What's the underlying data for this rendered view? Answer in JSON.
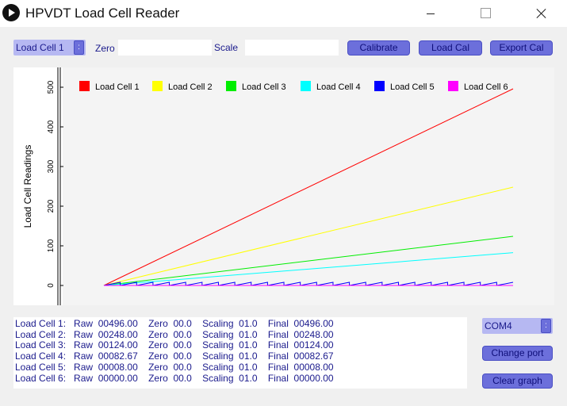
{
  "window": {
    "title": "HPVDT Load Cell Reader"
  },
  "toolbar": {
    "cell_select": "Load Cell 1",
    "zero_label": "Zero",
    "zero_value": "",
    "scale_label": "Scale",
    "scale_value": "",
    "calibrate_label": "Calibrate",
    "load_cal_label": "Load Cal",
    "export_cal_label": "Export Cal"
  },
  "side": {
    "port_select": "COM4",
    "change_port_label": "Change port",
    "clear_graph_label": "Clear graph"
  },
  "readouts": [
    "Load Cell 1:   Raw  00496.00    Zero  00.0    Scaling  01.0    Final  00496.00",
    "Load Cell 2:   Raw  00248.00    Zero  00.0    Scaling  01.0    Final  00248.00",
    "Load Cell 3:   Raw  00124.00    Zero  00.0    Scaling  01.0    Final  00124.00",
    "Load Cell 4:   Raw  00082.67    Zero  00.0    Scaling  01.0    Final  00082.67",
    "Load Cell 5:   Raw  00008.00    Zero  00.0    Scaling  01.0    Final  00008.00",
    "Load Cell 6:   Raw  00000.00    Zero  00.0    Scaling  01.0    Final  00000.00"
  ],
  "chart_data": {
    "type": "line",
    "ylabel": "Load Cell Readings",
    "xlabel": "",
    "ylim": [
      -25,
      530
    ],
    "xlim": [
      0,
      100
    ],
    "yticks": [
      0,
      100,
      200,
      300,
      400,
      500
    ],
    "legend_position": "top",
    "grid": false,
    "series": [
      {
        "name": "Load Cell 1",
        "color": "#ff0000",
        "x": [
          0,
          100
        ],
        "y": [
          0,
          496
        ]
      },
      {
        "name": "Load Cell 2",
        "color": "#ffff00",
        "x": [
          0,
          100
        ],
        "y": [
          0,
          248
        ]
      },
      {
        "name": "Load Cell 3",
        "color": "#00ee00",
        "x": [
          0,
          100
        ],
        "y": [
          0,
          124
        ]
      },
      {
        "name": "Load Cell 4",
        "color": "#00ffff",
        "x": [
          0,
          100
        ],
        "y": [
          0,
          82.67
        ]
      },
      {
        "name": "Load Cell 5",
        "color": "#0000ff",
        "sawtooth": {
          "min": 0,
          "max": 8,
          "period": 4
        },
        "x": [
          0,
          100
        ],
        "y": [
          0,
          8
        ]
      },
      {
        "name": "Load Cell 6",
        "color": "#ff00ff",
        "x": [
          0,
          100
        ],
        "y": [
          0,
          0
        ]
      }
    ]
  }
}
